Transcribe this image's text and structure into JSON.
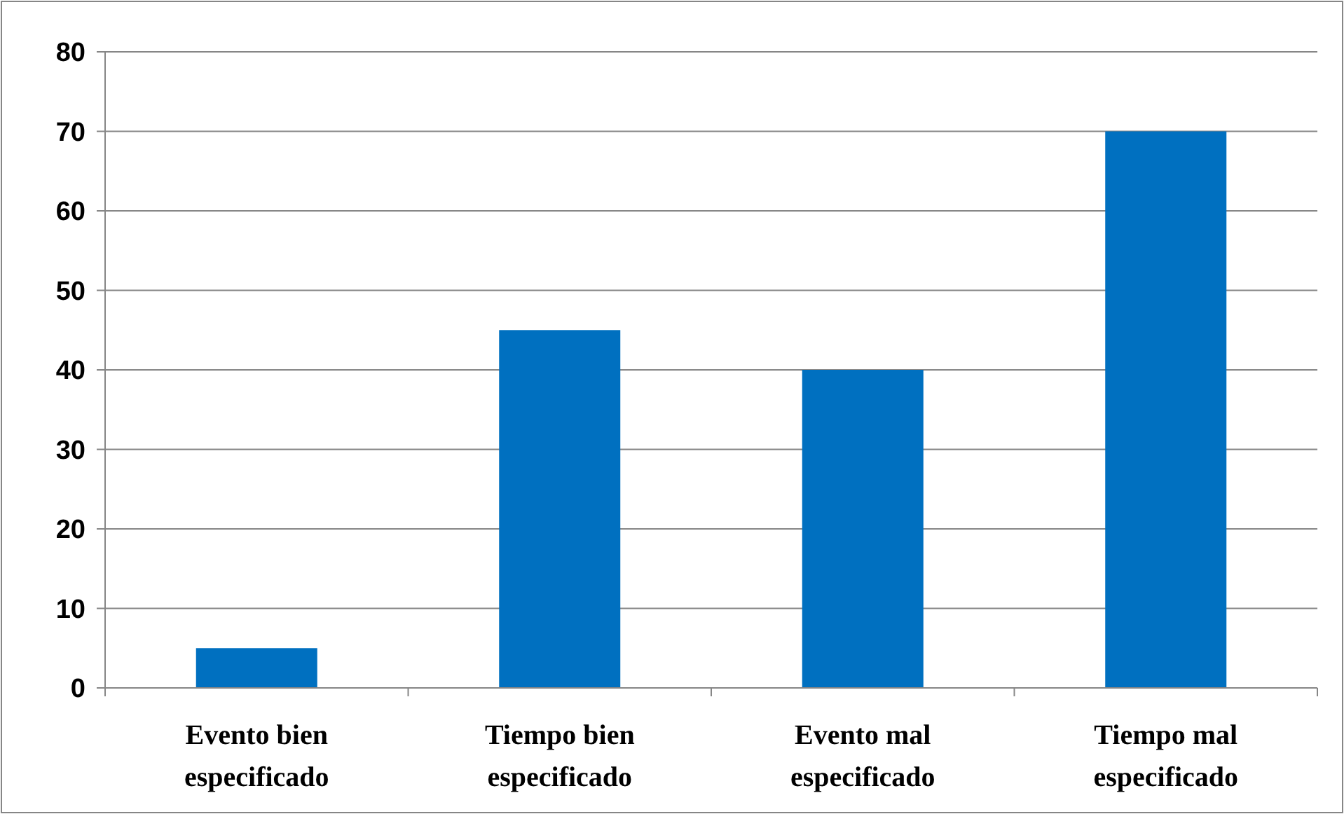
{
  "chart_data": {
    "type": "bar",
    "categories": [
      "Evento bien especificado",
      "Tiempo bien especificado",
      "Evento mal especificado",
      "Tiempo mal especificado"
    ],
    "values": [
      5,
      45,
      40,
      70
    ],
    "color": "#0070c0",
    "ylim": [
      0,
      80
    ],
    "yticks": [
      0,
      10,
      20,
      30,
      40,
      50,
      60,
      70,
      80
    ],
    "grid": "y"
  }
}
